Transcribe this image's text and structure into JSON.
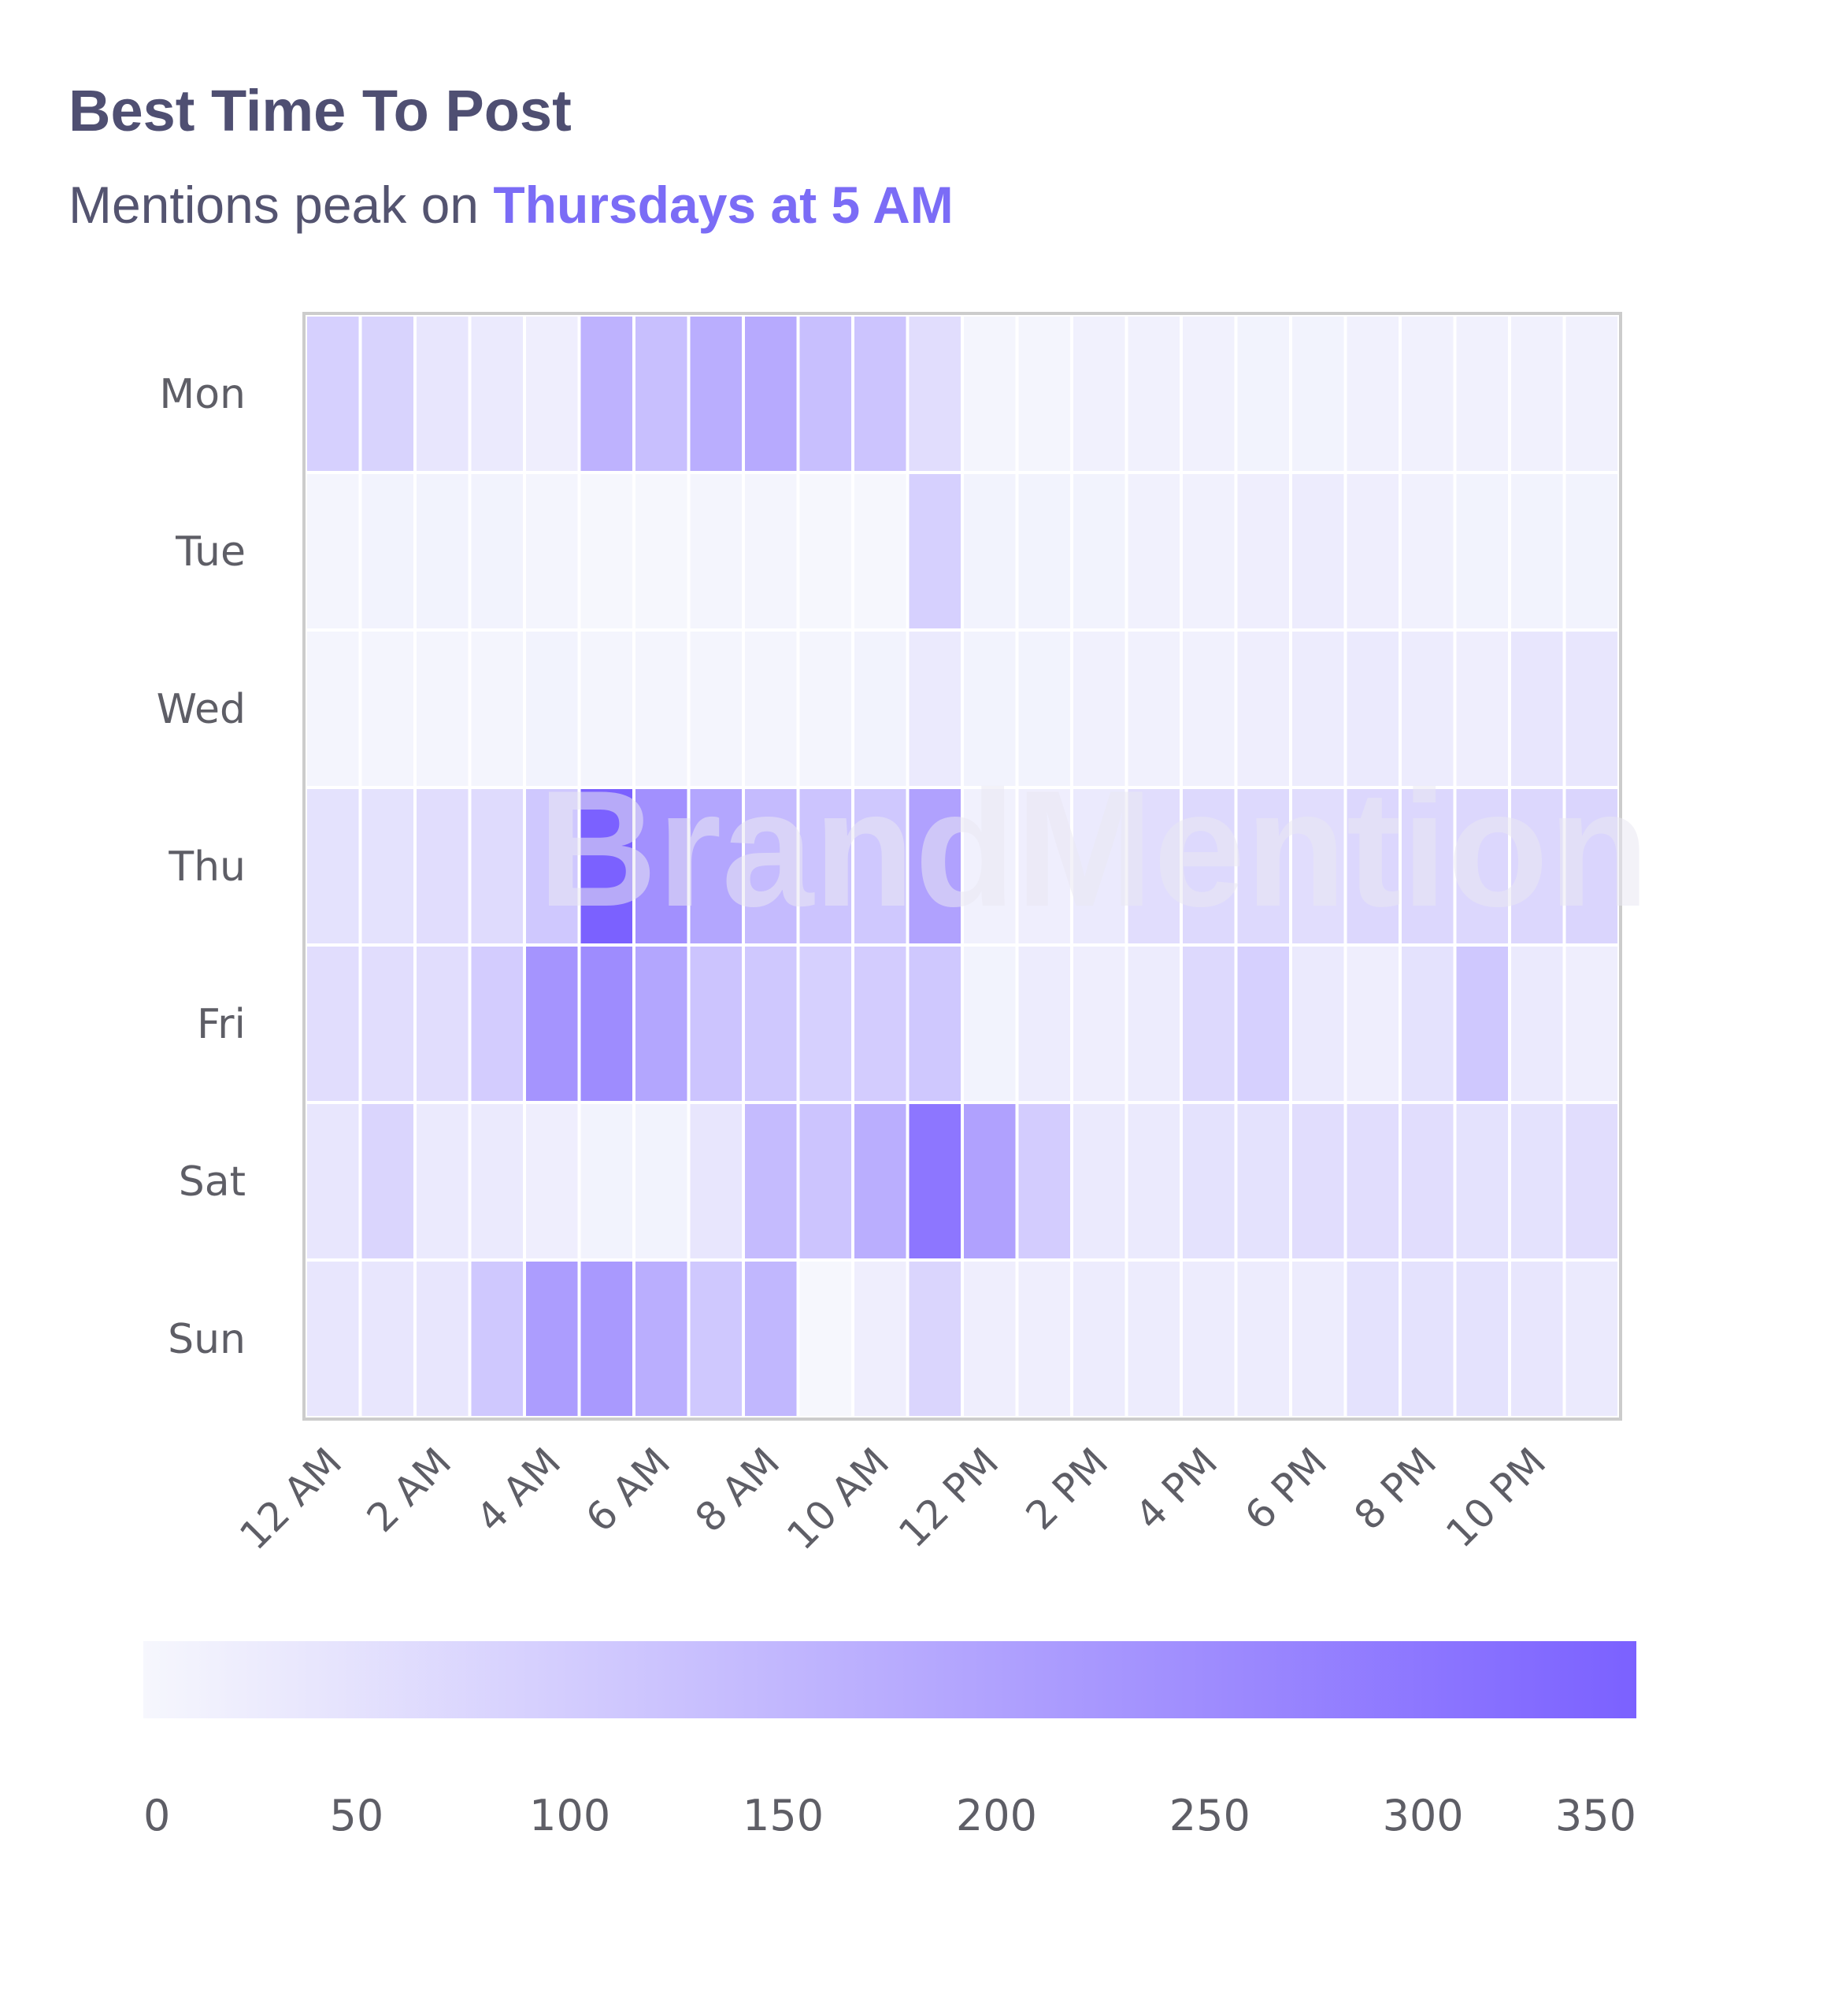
{
  "header": {
    "title": "Best Time To Post",
    "subtitle_prefix": "Mentions peak on ",
    "subtitle_highlight": "Thursdays at 5 AM"
  },
  "watermark": {
    "text": "BrandMention",
    "color": "#e9e7f3"
  },
  "colors": {
    "title": "#4f4f72",
    "highlight": "#7b6cf6",
    "scale_low": "#f6f7fd",
    "scale_high": "#7b61ff",
    "grid_border": "#cccccc"
  },
  "chart_data": {
    "type": "heatmap",
    "title": "Best Time To Post",
    "subtitle": "Mentions peak on Thursdays at 5 AM",
    "y_categories": [
      "Mon",
      "Tue",
      "Wed",
      "Thu",
      "Fri",
      "Sat",
      "Sun"
    ],
    "x_categories": [
      "12 AM",
      "1 AM",
      "2 AM",
      "3 AM",
      "4 AM",
      "5 AM",
      "6 AM",
      "7 AM",
      "8 AM",
      "9 AM",
      "10 AM",
      "11 AM",
      "12 PM",
      "1 PM",
      "2 PM",
      "3 PM",
      "4 PM",
      "5 PM",
      "6 PM",
      "7 PM",
      "8 PM",
      "9 PM",
      "10 PM",
      "11 PM"
    ],
    "x_tick_labels": [
      "12 AM",
      "2 AM",
      "4 AM",
      "6 AM",
      "8 AM",
      "10 AM",
      "12 PM",
      "2 PM",
      "4 PM",
      "6 PM",
      "8 PM",
      "10 PM"
    ],
    "values": [
      [
        90,
        85,
        40,
        30,
        20,
        160,
        130,
        170,
        180,
        130,
        120,
        60,
        5,
        5,
        15,
        15,
        15,
        10,
        10,
        15,
        15,
        15,
        15,
        15
      ],
      [
        5,
        10,
        10,
        10,
        5,
        0,
        0,
        5,
        5,
        0,
        0,
        90,
        10,
        10,
        10,
        15,
        15,
        20,
        25,
        20,
        15,
        10,
        10,
        10
      ],
      [
        5,
        5,
        5,
        5,
        10,
        5,
        5,
        5,
        5,
        5,
        10,
        30,
        10,
        10,
        15,
        15,
        15,
        20,
        25,
        30,
        25,
        20,
        40,
        40
      ],
      [
        50,
        50,
        60,
        65,
        110,
        350,
        240,
        190,
        140,
        120,
        110,
        200,
        15,
        20,
        30,
        60,
        70,
        70,
        60,
        75,
        75,
        75,
        75,
        80
      ],
      [
        60,
        60,
        60,
        100,
        230,
        250,
        190,
        120,
        110,
        90,
        100,
        110,
        10,
        25,
        20,
        25,
        70,
        90,
        30,
        20,
        50,
        110,
        30,
        20
      ],
      [
        40,
        80,
        30,
        30,
        20,
        10,
        10,
        40,
        140,
        120,
        170,
        300,
        200,
        100,
        30,
        30,
        50,
        50,
        60,
        60,
        60,
        50,
        50,
        60
      ],
      [
        40,
        40,
        40,
        110,
        210,
        220,
        170,
        110,
        150,
        0,
        20,
        80,
        20,
        20,
        25,
        25,
        25,
        25,
        25,
        50,
        50,
        50,
        40,
        30
      ]
    ],
    "color_scale": {
      "min": 0,
      "max": 350,
      "ticks": [
        "0",
        "50",
        "100",
        "150",
        "200",
        "250",
        "300",
        "350"
      ],
      "position": "bottom"
    },
    "legend": "bottom"
  }
}
